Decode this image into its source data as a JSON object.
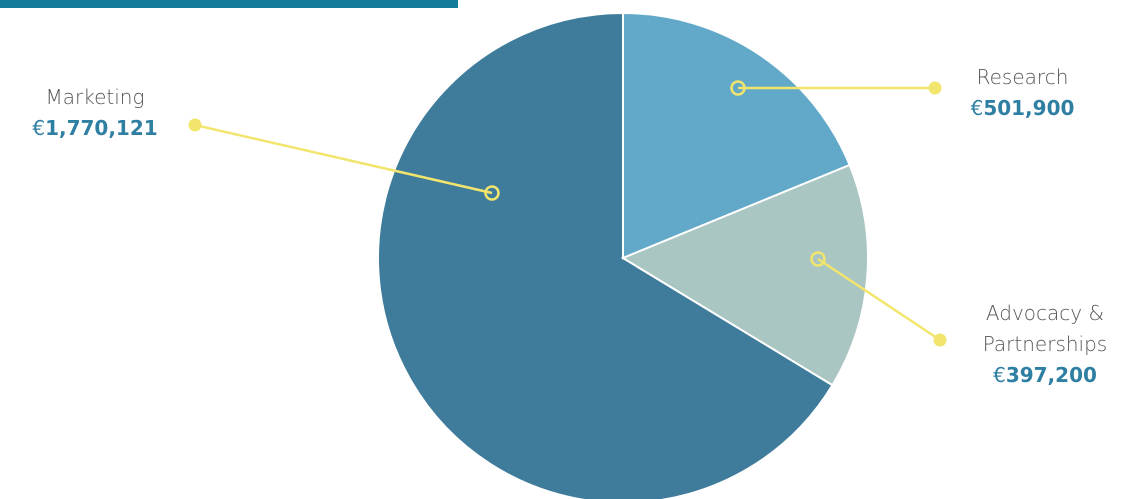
{
  "chart_data": {
    "type": "pie",
    "categories": [
      "Marketing",
      "Research",
      "Advocacy & Partnerships"
    ],
    "values": [
      1770121,
      501900,
      397200
    ],
    "value_labels": [
      "€1,770,121",
      "€501,900",
      "€397,200"
    ],
    "colors": [
      "#3f7c9b",
      "#62a9c9",
      "#a9c6c2"
    ]
  }
}
